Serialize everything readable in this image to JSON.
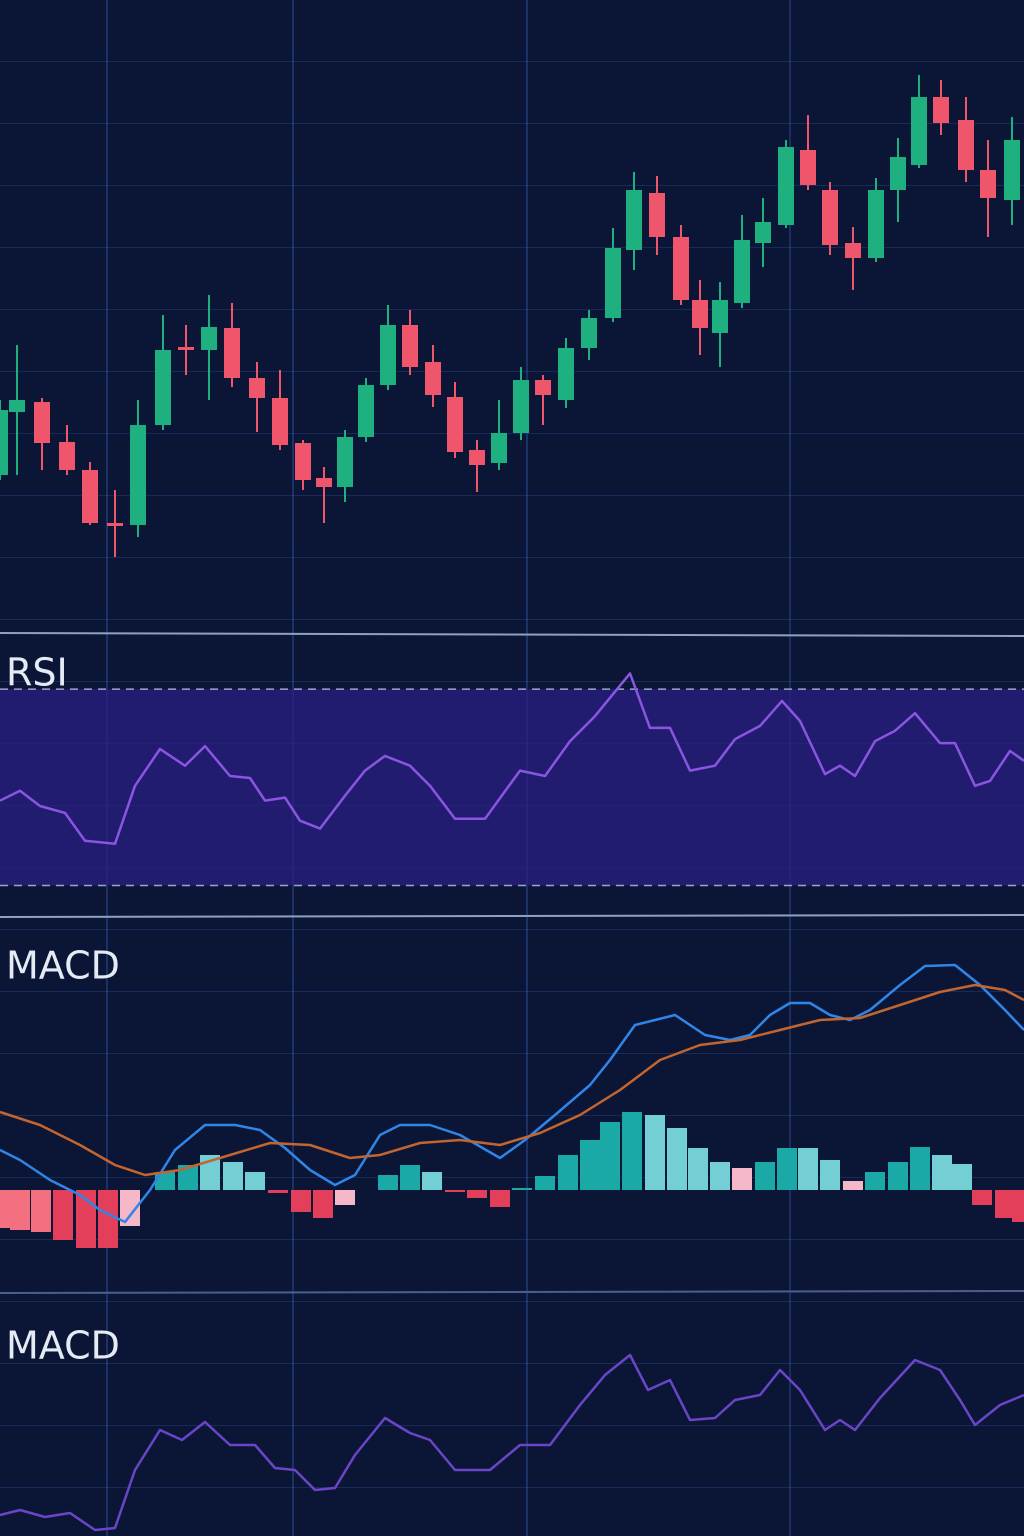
{
  "chart_data": [
    {
      "type": "candlestick",
      "x": [
        0,
        17,
        42,
        67,
        90,
        115,
        138,
        163,
        186,
        209,
        232,
        257,
        280,
        303,
        324,
        345,
        366,
        388,
        410,
        433,
        455,
        477,
        499,
        521,
        543,
        566,
        589,
        613,
        634,
        657,
        681,
        700,
        720,
        742,
        763,
        786,
        808,
        830,
        853,
        876,
        898,
        919,
        941,
        966,
        988,
        1012
      ],
      "open": [
        145,
        208,
        218,
        178,
        150,
        97,
        95,
        195,
        273,
        270,
        292,
        242,
        222,
        177,
        142,
        133,
        183,
        235,
        295,
        258,
        223,
        170,
        157,
        187,
        240,
        220,
        272,
        302,
        370,
        427,
        383,
        320,
        287,
        317,
        377,
        395,
        470,
        430,
        377,
        362,
        430,
        455,
        523,
        500,
        450,
        420
      ],
      "high": [
        220,
        275,
        222,
        195,
        158,
        130,
        220,
        305,
        295,
        325,
        317,
        258,
        250,
        180,
        153,
        190,
        242,
        315,
        310,
        275,
        238,
        180,
        220,
        253,
        245,
        282,
        310,
        392,
        448,
        444,
        395,
        340,
        338,
        405,
        422,
        480,
        505,
        438,
        393,
        442,
        482,
        545,
        540,
        523,
        480,
        503
      ],
      "low": [
        140,
        145,
        150,
        145,
        95,
        63,
        83,
        190,
        245,
        220,
        233,
        188,
        170,
        130,
        97,
        118,
        178,
        230,
        245,
        213,
        162,
        128,
        150,
        180,
        195,
        212,
        260,
        298,
        350,
        365,
        315,
        265,
        253,
        312,
        353,
        392,
        430,
        365,
        330,
        358,
        398,
        452,
        485,
        438,
        383,
        395
      ],
      "close": [
        210,
        220,
        177,
        150,
        97,
        94,
        195,
        270,
        270,
        293,
        242,
        222,
        175,
        140,
        133,
        183,
        235,
        295,
        253,
        225,
        168,
        155,
        187,
        240,
        225,
        272,
        302,
        372,
        430,
        383,
        320,
        292,
        320,
        380,
        398,
        473,
        435,
        375,
        362,
        430,
        463,
        523,
        497,
        450,
        422,
        480
      ],
      "up_color": "#1fb07f",
      "down_color": "#f0566b",
      "xlim": [
        0,
        1024
      ],
      "ylim": [
        0,
        620
      ]
    },
    {
      "type": "line",
      "title": "RSI",
      "x": [
        0,
        20,
        40,
        65,
        85,
        115,
        135,
        160,
        185,
        205,
        230,
        250,
        265,
        285,
        300,
        320,
        345,
        365,
        385,
        410,
        430,
        455,
        485,
        520,
        545,
        570,
        595,
        630,
        650,
        670,
        690,
        715,
        735,
        760,
        782,
        800,
        825,
        840,
        855,
        875,
        895,
        915,
        940,
        955,
        975,
        990,
        1010,
        1024
      ],
      "series": [
        {
          "color": "#8a55e0",
          "values": [
            47.3,
            49.3,
            46.2,
            44.8,
            39.1,
            38.5,
            50.3,
            57.8,
            54.4,
            58.4,
            52.3,
            51.9,
            47.3,
            47.9,
            43.2,
            41.6,
            48.3,
            53.4,
            56.4,
            54.4,
            50.3,
            43.6,
            43.6,
            53.4,
            52.3,
            59.4,
            64.5,
            73.2,
            62.1,
            62.1,
            53.4,
            54.4,
            59.8,
            62.5,
            67.6,
            63.5,
            52.7,
            54.4,
            52.3,
            59.4,
            61.5,
            65.1,
            59.0,
            59.0,
            50.3,
            51.3,
            57.4,
            55.4
          ]
        }
      ],
      "band": [
        30,
        70
      ],
      "band_color": "#2b1f86",
      "xlim": [
        0,
        1024
      ],
      "ylim": [
        24,
        80
      ]
    },
    {
      "type": "combo",
      "title": "MACD",
      "series": [
        {
          "color": "#2f86e8",
          "x": [
            0,
            20,
            50,
            80,
            100,
            125,
            150,
            175,
            205,
            235,
            260,
            285,
            310,
            335,
            355,
            380,
            400,
            430,
            460,
            500,
            525,
            555,
            590,
            610,
            635,
            675,
            705,
            730,
            750,
            770,
            790,
            810,
            830,
            850,
            870,
            900,
            925,
            955,
            980,
            1005,
            1024
          ],
          "values": [
            4,
            3,
            1,
            -0.5,
            -2,
            -3.2,
            0,
            4,
            6.5,
            6.5,
            6,
            4.2,
            2,
            0.5,
            1.5,
            5.5,
            6.5,
            6.5,
            5.5,
            3.2,
            5,
            7.5,
            10.5,
            13,
            16.5,
            17.5,
            15.5,
            15,
            15.5,
            17.5,
            18.7,
            18.7,
            17.5,
            17,
            18,
            20.5,
            22.4,
            22.5,
            20.5,
            18,
            16
          ]
        },
        {
          "color": "#c2652e",
          "x": [
            0,
            40,
            80,
            115,
            145,
            180,
            230,
            270,
            310,
            350,
            380,
            420,
            460,
            500,
            540,
            580,
            620,
            660,
            700,
            740,
            780,
            820,
            860,
            900,
            940,
            975,
            1005,
            1024
          ],
          "values": [
            7.8,
            6.5,
            4.5,
            2.5,
            1.5,
            2,
            3.5,
            4.7,
            4.5,
            3.2,
            3.5,
            4.7,
            5,
            4.5,
            5.7,
            7.5,
            10,
            13,
            14.5,
            15,
            16,
            17,
            17.2,
            18.5,
            19.8,
            20.5,
            20,
            19
          ]
        }
      ],
      "histogram": {
        "x": [
          5,
          20,
          41,
          63,
          86,
          108,
          130,
          165,
          188,
          210,
          233,
          255,
          278,
          301,
          323,
          345,
          388,
          410,
          432,
          455,
          477,
          500,
          522,
          545,
          568,
          590,
          610,
          632,
          655,
          677,
          698,
          720,
          742,
          765,
          787,
          808,
          830,
          853,
          875,
          898,
          920,
          942,
          962,
          982,
          1005,
          1022
        ],
        "values": [
          -3.8,
          -4,
          -4.2,
          -5,
          -5.8,
          -5.8,
          -3.6,
          1.8,
          2.5,
          3.5,
          2.8,
          1.8,
          -0.3,
          -2.2,
          -2.8,
          -1.5,
          1.5,
          2.5,
          1.8,
          -0.2,
          -0.8,
          -1.7,
          0.2,
          1.4,
          3.5,
          5.0,
          6.8,
          7.8,
          7.5,
          6.2,
          4.2,
          2.8,
          2.2,
          2.8,
          4.2,
          4.2,
          3.0,
          0.9,
          1.8,
          2.8,
          4.3,
          3.5,
          2.6,
          -1.5,
          -2.8,
          -3.2
        ],
        "colors": [
          "#f27080",
          "#f27080",
          "#f27080",
          "#e33f5b",
          "#e33f5b",
          "#e33f5b",
          "#f5b8c8",
          "#1aa9a6",
          "#1aa9a6",
          "#73cfd3",
          "#73cfd3",
          "#73cfd3",
          "#e33f5b",
          "#e33f5b",
          "#e33f5b",
          "#f5b8c8",
          "#1aa9a6",
          "#1aa9a6",
          "#73cfd3",
          "#e33f5b",
          "#e33f5b",
          "#e33f5b",
          "#1aa9a6",
          "#1aa9a6",
          "#1aa9a6",
          "#1aa9a6",
          "#1aa9a6",
          "#1aa9a6",
          "#73cfd3",
          "#73cfd3",
          "#73cfd3",
          "#73cfd3",
          "#f5b8c8",
          "#1aa9a6",
          "#1aa9a6",
          "#73cfd3",
          "#73cfd3",
          "#f5b8c8",
          "#1aa9a6",
          "#1aa9a6",
          "#1aa9a6",
          "#73cfd3",
          "#73cfd3",
          "#e33f5b",
          "#e33f5b",
          "#e33f5b"
        ]
      },
      "xlim": [
        0,
        1024
      ],
      "ylim": [
        -10,
        26.5
      ]
    },
    {
      "type": "line",
      "title": "MACD",
      "x": [
        0,
        20,
        45,
        70,
        95,
        115,
        135,
        160,
        182,
        205,
        230,
        255,
        275,
        295,
        315,
        335,
        355,
        385,
        410,
        430,
        455,
        490,
        520,
        550,
        580,
        605,
        630,
        648,
        670,
        690,
        715,
        735,
        760,
        780,
        800,
        825,
        840,
        855,
        880,
        915,
        940,
        960,
        975,
        1000,
        1024
      ],
      "series": [
        {
          "color": "#6a45c8",
          "values": [
            2.1,
            2.6,
            1.9,
            2.3,
            0.6,
            0.8,
            6.6,
            10.6,
            9.6,
            11.4,
            9.1,
            9.1,
            6.8,
            6.6,
            4.6,
            4.8,
            8.1,
            11.8,
            10.3,
            9.6,
            6.6,
            6.6,
            9.1,
            9.1,
            13.1,
            16.1,
            18.1,
            14.6,
            15.6,
            11.6,
            11.8,
            13.6,
            14.1,
            16.6,
            14.6,
            10.6,
            11.6,
            10.6,
            13.8,
            17.6,
            16.6,
            13.6,
            11.1,
            13.1,
            14.1
          ]
        }
      ],
      "xlim": [
        0,
        1024
      ],
      "ylim": [
        0,
        23.6
      ]
    }
  ]
}
